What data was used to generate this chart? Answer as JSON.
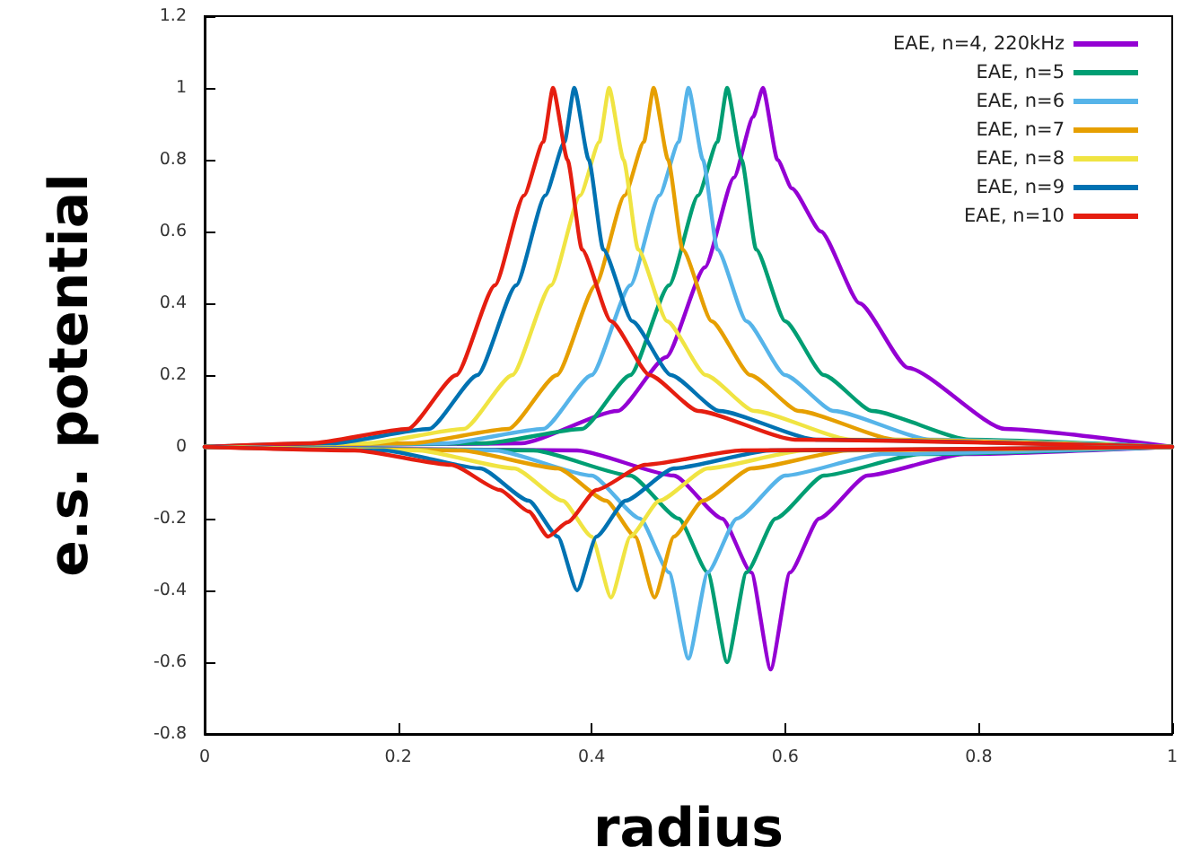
{
  "chart_data": {
    "type": "line",
    "xlabel": "radius",
    "ylabel": "e.s. potential",
    "xlim": [
      0,
      1
    ],
    "xticks": [
      0,
      0.2,
      0.4,
      0.6,
      0.8,
      1
    ],
    "ylim": [
      -0.8,
      1.2
    ],
    "yticks": [
      -0.8,
      -0.6,
      -0.4,
      -0.2,
      0,
      0.2,
      0.4,
      0.6,
      0.8,
      1,
      1.2
    ],
    "grid": false,
    "legend": "top right",
    "marker": "none",
    "line_style": "solid",
    "series": [
      {
        "name": "EAE, n=4, 220kHz",
        "color": "#9400d3",
        "x": [
          0,
          0.327,
          0.427,
          0.477,
          0.517,
          0.547,
          0.567,
          0.577,
          0.592,
          0.607,
          0.637,
          0.677,
          0.727,
          0.827,
          1
        ],
        "values": [
          0,
          0.01,
          0.1,
          0.25,
          0.5,
          0.75,
          0.92,
          1,
          0.8,
          0.72,
          0.6,
          0.4,
          0.22,
          0.05,
          0
        ]
      },
      {
        "name": "EAE, n=5",
        "color": "#009e73",
        "x": [
          0,
          0.29,
          0.39,
          0.44,
          0.48,
          0.51,
          0.53,
          0.54,
          0.555,
          0.57,
          0.6,
          0.64,
          0.69,
          0.79,
          1
        ],
        "values": [
          0,
          0.01,
          0.05,
          0.2,
          0.45,
          0.7,
          0.85,
          1,
          0.8,
          0.55,
          0.35,
          0.2,
          0.1,
          0.02,
          0
        ]
      },
      {
        "name": "EAE, n=6",
        "color": "#56b4e9",
        "x": [
          0,
          0.25,
          0.35,
          0.4,
          0.44,
          0.47,
          0.49,
          0.5,
          0.515,
          0.53,
          0.56,
          0.6,
          0.65,
          0.75,
          1
        ],
        "values": [
          0,
          0.01,
          0.05,
          0.2,
          0.45,
          0.7,
          0.85,
          1,
          0.8,
          0.55,
          0.35,
          0.2,
          0.1,
          0.02,
          0
        ]
      },
      {
        "name": "EAE, n=7",
        "color": "#e69f00",
        "x": [
          0,
          0.214,
          0.314,
          0.364,
          0.404,
          0.434,
          0.454,
          0.464,
          0.479,
          0.494,
          0.524,
          0.564,
          0.614,
          0.714,
          1
        ],
        "values": [
          0,
          0.01,
          0.05,
          0.2,
          0.45,
          0.7,
          0.85,
          1,
          0.8,
          0.55,
          0.35,
          0.2,
          0.1,
          0.02,
          0
        ]
      },
      {
        "name": "EAE, n=8",
        "color": "#f0e442",
        "x": [
          0,
          0.168,
          0.268,
          0.318,
          0.358,
          0.388,
          0.408,
          0.418,
          0.433,
          0.448,
          0.478,
          0.518,
          0.568,
          0.668,
          1
        ],
        "values": [
          0,
          0.01,
          0.05,
          0.2,
          0.45,
          0.7,
          0.85,
          1,
          0.8,
          0.55,
          0.35,
          0.2,
          0.1,
          0.02,
          0
        ]
      },
      {
        "name": "EAE, n=9",
        "color": "#0072b2",
        "x": [
          0,
          0.132,
          0.232,
          0.282,
          0.322,
          0.352,
          0.372,
          0.382,
          0.397,
          0.412,
          0.442,
          0.482,
          0.532,
          0.632,
          1
        ],
        "values": [
          0,
          0.01,
          0.05,
          0.2,
          0.45,
          0.7,
          0.85,
          1,
          0.8,
          0.55,
          0.35,
          0.2,
          0.1,
          0.02,
          0
        ]
      },
      {
        "name": "EAE, n=10",
        "color": "#e51e10",
        "x": [
          0,
          0.11,
          0.21,
          0.26,
          0.3,
          0.33,
          0.35,
          0.36,
          0.375,
          0.39,
          0.42,
          0.46,
          0.51,
          0.61,
          1
        ],
        "values": [
          0,
          0.01,
          0.05,
          0.2,
          0.45,
          0.7,
          0.85,
          1,
          0.8,
          0.55,
          0.35,
          0.2,
          0.1,
          0.02,
          0
        ]
      },
      {
        "color": "#9400d3",
        "x": [
          0,
          0.385,
          0.485,
          0.535,
          0.565,
          0.585,
          0.605,
          0.635,
          0.685,
          0.785,
          1
        ],
        "values": [
          0,
          -0.01,
          -0.08,
          -0.2,
          -0.35,
          -0.62,
          -0.35,
          -0.2,
          -0.08,
          -0.02,
          0
        ]
      },
      {
        "color": "#009e73",
        "x": [
          0,
          0.34,
          0.44,
          0.49,
          0.52,
          0.54,
          0.56,
          0.59,
          0.64,
          0.74,
          1
        ],
        "values": [
          0,
          -0.01,
          -0.08,
          -0.2,
          -0.35,
          -0.6,
          -0.35,
          -0.2,
          -0.08,
          -0.02,
          0
        ]
      },
      {
        "color": "#56b4e9",
        "x": [
          0,
          0.3,
          0.4,
          0.45,
          0.48,
          0.5,
          0.52,
          0.55,
          0.6,
          0.7,
          1
        ],
        "values": [
          0,
          -0.01,
          -0.08,
          -0.2,
          -0.35,
          -0.59,
          -0.35,
          -0.2,
          -0.08,
          -0.02,
          0
        ]
      },
      {
        "color": "#e69f00",
        "x": [
          0,
          0.265,
          0.365,
          0.415,
          0.445,
          0.465,
          0.485,
          0.515,
          0.565,
          0.665,
          1
        ],
        "values": [
          0,
          -0.01,
          -0.06,
          -0.15,
          -0.25,
          -0.42,
          -0.25,
          -0.15,
          -0.06,
          -0.01,
          0
        ]
      },
      {
        "color": "#f0e442",
        "x": [
          0,
          0.22,
          0.32,
          0.37,
          0.4,
          0.42,
          0.44,
          0.47,
          0.52,
          0.62,
          1
        ],
        "values": [
          0,
          -0.01,
          -0.06,
          -0.15,
          -0.25,
          -0.42,
          -0.25,
          -0.15,
          -0.06,
          -0.01,
          0
        ]
      },
      {
        "color": "#0072b2",
        "x": [
          0,
          0.185,
          0.285,
          0.335,
          0.365,
          0.385,
          0.405,
          0.435,
          0.485,
          0.585,
          1
        ],
        "values": [
          0,
          -0.01,
          -0.06,
          -0.15,
          -0.25,
          -0.4,
          -0.25,
          -0.15,
          -0.06,
          -0.01,
          0
        ]
      },
      {
        "color": "#e51e10",
        "x": [
          0,
          0.155,
          0.255,
          0.305,
          0.335,
          0.355,
          0.375,
          0.405,
          0.455,
          0.555,
          1
        ],
        "values": [
          0,
          -0.01,
          -0.05,
          -0.12,
          -0.18,
          -0.25,
          -0.21,
          -0.12,
          -0.05,
          -0.01,
          0
        ]
      }
    ]
  }
}
